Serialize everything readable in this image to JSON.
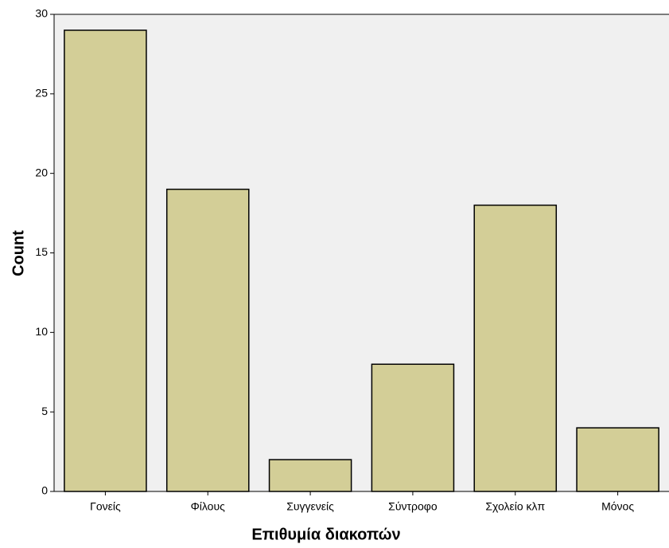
{
  "chart_data": {
    "type": "bar",
    "x_label": "Επιθυμία διακοπών",
    "y_label": "Count",
    "categories": [
      "Γονείς",
      "Φίλους",
      "Συγγενείς",
      "Σύντροφο",
      "Σχολείο κλπ",
      "Μόνος"
    ],
    "values": [
      29,
      19,
      2,
      8,
      18,
      4
    ],
    "color": "#d3ce97",
    "ylim": [
      0,
      30
    ],
    "yticks": [
      0,
      5,
      10,
      15,
      20,
      25,
      30
    ],
    "grid": false
  }
}
